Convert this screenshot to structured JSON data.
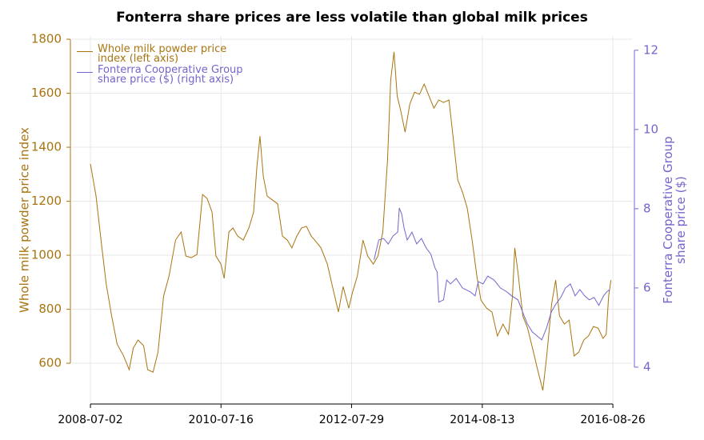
{
  "chart_data": {
    "type": "line",
    "title": "Fonterra share prices are less volatile than global milk prices",
    "y_label": "Whole milk powder price index",
    "y2_label": "Fonterra Cooperative Group share price ($)",
    "xlim": [
      "2008-03-19",
      "2016-12-13"
    ],
    "xticks": [
      "2008-07-02",
      "2010-07-16",
      "2012-07-29",
      "2014-08-13",
      "2016-08-26"
    ],
    "ylim": [
      449,
      1812
    ],
    "yticks": [
      600,
      800,
      1000,
      1200,
      1400,
      1600,
      1800
    ],
    "y2lim": [
      3.07,
      12.36
    ],
    "y2ticks": [
      4,
      6,
      8,
      10,
      12
    ],
    "grid": true,
    "legend": "upper left",
    "series": [
      {
        "name": "Whole milk powder price index (left axis)",
        "color": "#a87410",
        "axis": "y",
        "x": [
          "2008-07-02",
          "2008-08-03",
          "2008-09-03",
          "2008-09-30",
          "2008-10-31",
          "2008-12-01",
          "2009-01-07",
          "2009-02-08",
          "2009-03-03",
          "2009-03-30",
          "2009-05-01",
          "2009-05-24",
          "2009-06-24",
          "2009-07-22",
          "2009-08-23",
          "2009-09-23",
          "2009-10-30",
          "2009-12-01",
          "2009-12-28",
          "2010-01-28",
          "2010-03-01",
          "2010-04-02",
          "2010-04-28",
          "2010-05-26",
          "2010-06-17",
          "2010-07-16",
          "2010-08-03",
          "2010-08-30",
          "2010-09-22",
          "2010-10-19",
          "2010-11-20",
          "2010-12-22",
          "2011-01-18",
          "2011-02-05",
          "2011-02-23",
          "2011-03-14",
          "2011-04-05",
          "2011-05-07",
          "2011-06-04",
          "2011-07-01",
          "2011-07-29",
          "2011-08-24",
          "2011-09-21",
          "2011-10-18",
          "2011-11-15",
          "2011-12-12",
          "2012-01-09",
          "2012-02-06",
          "2012-03-13",
          "2012-04-13",
          "2012-05-15",
          "2012-06-11",
          "2012-07-13",
          "2012-08-04",
          "2012-08-31",
          "2012-10-02",
          "2012-10-29",
          "2012-11-30",
          "2012-12-26",
          "2013-01-23",
          "2013-02-19",
          "2013-03-09",
          "2013-03-28",
          "2013-04-15",
          "2013-05-07",
          "2013-05-30",
          "2013-06-26",
          "2013-07-23",
          "2013-08-20",
          "2013-09-16",
          "2013-10-13",
          "2013-11-10",
          "2013-12-08",
          "2014-01-04",
          "2014-02-04",
          "2014-02-27",
          "2014-03-26",
          "2014-04-22",
          "2014-05-19",
          "2014-06-16",
          "2014-07-13",
          "2014-08-05",
          "2014-09-06",
          "2014-10-07",
          "2014-11-07",
          "2014-12-09",
          "2015-01-09",
          "2015-02-01",
          "2015-02-14",
          "2015-03-04",
          "2015-04-01",
          "2015-04-28",
          "2015-05-26",
          "2015-06-22",
          "2015-07-24",
          "2015-08-15",
          "2015-09-12",
          "2015-10-05",
          "2015-10-27",
          "2015-11-24",
          "2015-12-21",
          "2016-01-18",
          "2016-02-14",
          "2016-03-13",
          "2016-04-09",
          "2016-05-07",
          "2016-06-03",
          "2016-07-01",
          "2016-07-19",
          "2016-08-02",
          "2016-08-15"
        ],
        "values": [
          1338,
          1219,
          1041,
          893,
          775,
          671,
          627,
          576,
          656,
          686,
          665,
          576,
          567,
          641,
          849,
          923,
          1056,
          1086,
          997,
          991,
          1003,
          1225,
          1210,
          1160,
          997,
          967,
          914,
          1086,
          1101,
          1071,
          1056,
          1101,
          1160,
          1323,
          1441,
          1293,
          1219,
          1204,
          1190,
          1071,
          1056,
          1027,
          1071,
          1101,
          1107,
          1071,
          1050,
          1027,
          967,
          879,
          790,
          884,
          804,
          864,
          923,
          1056,
          997,
          967,
          997,
          1086,
          1353,
          1649,
          1753,
          1590,
          1530,
          1456,
          1560,
          1604,
          1596,
          1634,
          1590,
          1545,
          1575,
          1566,
          1575,
          1441,
          1279,
          1234,
          1175,
          1056,
          923,
          834,
          804,
          790,
          701,
          745,
          707,
          849,
          1027,
          938,
          775,
          730,
          656,
          582,
          499,
          627,
          819,
          908,
          775,
          745,
          760,
          627,
          641,
          686,
          701,
          736,
          730,
          692,
          707,
          849,
          908
        ]
      },
      {
        "name": "Fonterra Cooperative Group share price ($) (right axis)",
        "color": "#7466cc",
        "axis": "y2",
        "x": [
          "2012-12-04",
          "2012-12-31",
          "2013-01-27",
          "2013-02-23",
          "2013-03-22",
          "2013-04-18",
          "2013-04-27",
          "2013-05-11",
          "2013-05-24",
          "2013-06-11",
          "2013-07-08",
          "2013-08-04",
          "2013-08-31",
          "2013-09-27",
          "2013-10-24",
          "2013-11-16",
          "2013-11-29",
          "2013-12-08",
          "2014-01-04",
          "2014-01-22",
          "2014-02-13",
          "2014-03-17",
          "2014-04-22",
          "2014-06-06",
          "2014-07-03",
          "2014-07-21",
          "2014-08-17",
          "2014-09-13",
          "2014-10-19",
          "2014-11-24",
          "2014-12-31",
          "2015-01-27",
          "2015-03-04",
          "2015-03-31",
          "2015-04-27",
          "2015-05-25",
          "2015-06-21",
          "2015-07-18",
          "2015-08-14",
          "2015-09-10",
          "2015-10-07",
          "2015-11-03",
          "2015-11-30",
          "2015-12-28",
          "2016-01-24",
          "2016-02-20",
          "2016-03-18",
          "2016-04-14",
          "2016-05-11",
          "2016-06-07",
          "2016-07-04",
          "2016-07-22",
          "2016-08-09"
        ],
        "values": [
          6.71,
          7.21,
          7.25,
          7.11,
          7.31,
          7.41,
          8.02,
          7.86,
          7.52,
          7.21,
          7.41,
          7.11,
          7.25,
          7.01,
          6.85,
          6.51,
          6.4,
          5.64,
          5.7,
          6.2,
          6.1,
          6.24,
          6.0,
          5.9,
          5.8,
          6.16,
          6.1,
          6.3,
          6.2,
          6.0,
          5.9,
          5.8,
          5.7,
          5.39,
          5.09,
          4.89,
          4.79,
          4.69,
          4.99,
          5.39,
          5.6,
          5.76,
          6.0,
          6.1,
          5.8,
          5.96,
          5.8,
          5.7,
          5.76,
          5.56,
          5.8,
          5.9,
          5.96
        ]
      }
    ]
  }
}
